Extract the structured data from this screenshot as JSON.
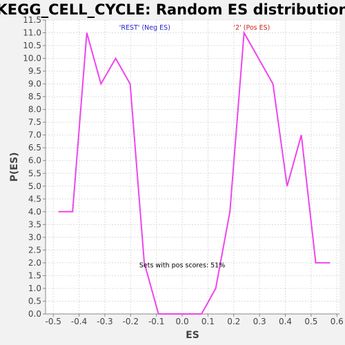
{
  "chart_data": {
    "type": "line",
    "title": "KEGG_CELL_CYCLE: Random ES distribution",
    "xlabel": "ES",
    "ylabel": "P(ES)",
    "xlim": [
      -0.53,
      0.61
    ],
    "ylim": [
      0,
      11.5
    ],
    "xticks": [
      -0.5,
      -0.4,
      -0.3,
      -0.2,
      -0.1,
      0.0,
      0.1,
      0.2,
      0.3,
      0.4,
      0.5,
      0.6
    ],
    "xtick_labels": [
      "-0.5",
      "-0.4",
      "-0.3",
      "-0.2",
      "-0.1",
      "0.0",
      "0.1",
      "0.2",
      "0.3",
      "0.4",
      "0.5",
      "0.6"
    ],
    "yticks": [
      0,
      0.5,
      1,
      1.5,
      2,
      2.5,
      3,
      3.5,
      4,
      4.5,
      5,
      5.5,
      6,
      6.5,
      7,
      7.5,
      8,
      8.5,
      9,
      9.5,
      10,
      10.5,
      11,
      11.5
    ],
    "ytick_labels": [
      "0.0",
      "0.5",
      "1.0",
      "1.5",
      "2.0",
      "2.5",
      "3.0",
      "3.5",
      "4.0",
      "4.5",
      "5.0",
      "5.5",
      "6.0",
      "6.5",
      "7.0",
      "7.5",
      "8.0",
      "8.5",
      "9.0",
      "9.5",
      "10.0",
      "10.5",
      "11.0",
      "11.5"
    ],
    "grid": true,
    "series": [
      {
        "color": "#ee44ee",
        "x": [
          -0.48,
          -0.425,
          -0.37,
          -0.315,
          -0.258,
          -0.202,
          -0.147,
          -0.092,
          -0.036,
          0.019,
          0.075,
          0.13,
          0.185,
          0.24,
          0.352,
          0.407,
          0.462,
          0.518,
          0.573
        ],
        "y": [
          4,
          4,
          11,
          9,
          10,
          9,
          2,
          0,
          0,
          0,
          0,
          1,
          4,
          11,
          9,
          5,
          7,
          2,
          2
        ]
      }
    ],
    "annotations": [
      {
        "text": "'REST' (Neg ES)",
        "color": "#2222cc",
        "x": -0.145,
        "y": 11.2
      },
      {
        "text": "'2' (Pos ES)",
        "color": "#cc2222",
        "x": 0.27,
        "y": 11.2
      },
      {
        "text": "Sets with pos scores: 51%",
        "color": "#000000",
        "x": 0.0,
        "y": 1.9
      }
    ]
  }
}
